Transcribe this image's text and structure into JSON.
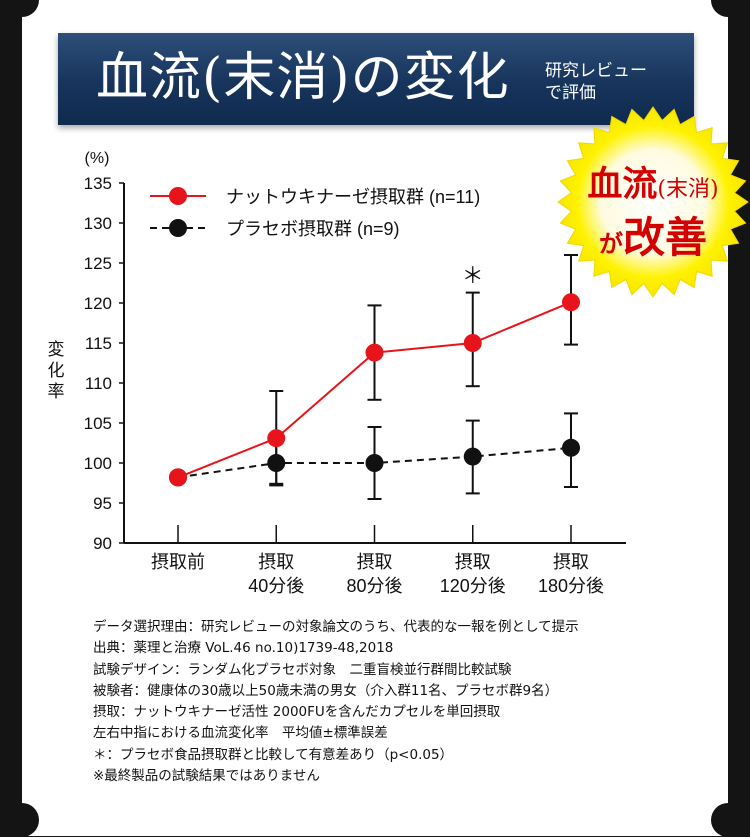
{
  "header": {
    "title": "血流(末消)の変化",
    "subtitle_line1": "研究レビュー",
    "subtitle_line2": "で評価"
  },
  "badge": {
    "line1_main": "血流",
    "line1_paren": "(末消)",
    "line2_small": "が",
    "line2_main": "改善"
  },
  "colors": {
    "accent_red": "#e8141b",
    "series_black": "#111111",
    "banner_blue": "#17345c",
    "badge_yellow": "#fff200"
  },
  "chart_data": {
    "type": "line",
    "y_unit": "(%)",
    "ylabel": "変化率",
    "ylim": [
      90,
      135
    ],
    "yticks": [
      90,
      95,
      100,
      105,
      110,
      115,
      120,
      125,
      130,
      135
    ],
    "categories": [
      [
        "摂取前"
      ],
      [
        "摂取",
        "40分後"
      ],
      [
        "摂取",
        "80分後"
      ],
      [
        "摂取",
        "120分後"
      ],
      [
        "摂取",
        "180分後"
      ]
    ],
    "series": [
      {
        "name": "ナットウキナーゼ摂取群 (n=11)",
        "color": "#e8141b",
        "style": "solid",
        "values": [
          98.2,
          103.1,
          113.8,
          115.0,
          120.1
        ],
        "err_low": [
          null,
          97.2,
          107.9,
          109.6,
          114.8
        ],
        "err_high": [
          null,
          109.0,
          119.7,
          121.3,
          126.0
        ]
      },
      {
        "name": "プラセボ摂取群 (n=9)",
        "color": "#111111",
        "style": "dashed",
        "values": [
          98.2,
          100.0,
          100.0,
          100.8,
          101.9
        ],
        "err_low": [
          null,
          97.4,
          95.5,
          96.2,
          97.0
        ],
        "err_high": [
          null,
          103.5,
          104.5,
          105.3,
          106.2
        ]
      }
    ],
    "annotations": [
      {
        "text": "＊",
        "category_index": 3,
        "y": 124.0
      }
    ],
    "legend_position": "top-left",
    "grid": false
  },
  "notes": [
    "データ選択理由：研究レビューの対象論文のうち、代表的な一報を例として提示",
    "出典：薬理と治療 VoL.46 no.10)1739-48,2018",
    "試験デザイン：ランダム化プラセボ対象　二重盲検並行群間比較試験",
    "被験者：健康体の30歳以上50歳未満の男女（介入群11名、プラセボ群9名）",
    "摂取：ナットウキナーゼ活性 2000FUを含んだカプセルを単回摂取",
    "左右中指における血流変化率　平均値±標準誤差",
    "＊：プラセボ食品摂取群と比較して有意差あり（p<0.05）",
    "※最終製品の試験結果ではありません"
  ]
}
